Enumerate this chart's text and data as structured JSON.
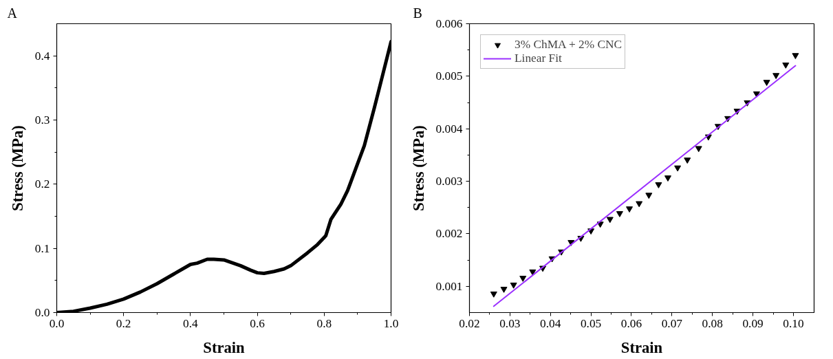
{
  "chart_data": [
    {
      "type": "line",
      "xlabel": "Strain",
      "ylabel": "Stress (MPa)",
      "annotations": [
        "A"
      ],
      "xlim": [
        0,
        1
      ],
      "ylim": [
        0,
        0.45
      ],
      "xticks": [
        {
          "value": 0,
          "label": "0.0"
        },
        0.2,
        0.4,
        0.6,
        0.8,
        {
          "value": 1,
          "label": "1.0"
        }
      ],
      "yticks": [
        {
          "value": 0,
          "label": "0.0"
        },
        0.1,
        0.2,
        0.3,
        0.4
      ],
      "grid": false,
      "legend": false,
      "series": [
        {
          "color": "#000000",
          "x": [
            0,
            0.05,
            0.1,
            0.15,
            0.2,
            0.25,
            0.3,
            0.35,
            0.4,
            0.42,
            0.45,
            0.47,
            0.5,
            0.55,
            0.58,
            0.6,
            0.62,
            0.65,
            0.68,
            0.7,
            0.75,
            0.78,
            0.8,
            0.805,
            0.82,
            0.85,
            0.87,
            0.9,
            0.92,
            0.95,
            0.97,
            1.0
          ],
          "values": [
            0,
            0.002,
            0.007,
            0.013,
            0.021,
            0.032,
            0.045,
            0.06,
            0.075,
            0.077,
            0.083,
            0.083,
            0.082,
            0.073,
            0.066,
            0.062,
            0.061,
            0.064,
            0.068,
            0.073,
            0.093,
            0.106,
            0.117,
            0.12,
            0.145,
            0.169,
            0.19,
            0.232,
            0.26,
            0.319,
            0.36,
            0.422
          ]
        }
      ]
    },
    {
      "type": "scatter",
      "xlabel": "Strain",
      "ylabel": "Stress (MPa)",
      "annotations": [
        "B"
      ],
      "xlim": [
        0.02,
        0.1051
      ],
      "ylim": [
        0.0005,
        0.006
      ],
      "xticks": [
        0.02,
        0.03,
        0.04,
        0.05,
        0.06,
        0.07,
        0.08,
        0.09,
        {
          "value": 0.1,
          "label": "0.10"
        }
      ],
      "yticks": [
        0.001,
        0.002,
        0.003,
        0.004,
        0.005,
        0.006
      ],
      "grid": false,
      "legend": "top left",
      "series": [
        {
          "name": "3% ChMA + 2% CNC",
          "color": "#000000",
          "marker": "triangle",
          "x": [
            0.026,
            0.0285,
            0.0309,
            0.0332,
            0.0356,
            0.0381,
            0.0404,
            0.0427,
            0.0451,
            0.0475,
            0.05,
            0.0523,
            0.0547,
            0.0571,
            0.0595,
            0.0619,
            0.0643,
            0.0667,
            0.069,
            0.0714,
            0.0738,
            0.0766,
            0.079,
            0.0814,
            0.0838,
            0.0861,
            0.0886,
            0.0909,
            0.0934,
            0.0957,
            0.0981,
            0.1005
          ],
          "values": [
            0.00086,
            0.00095,
            0.00103,
            0.00116,
            0.00128,
            0.00135,
            0.00153,
            0.00166,
            0.00184,
            0.00192,
            0.00206,
            0.00219,
            0.00228,
            0.00239,
            0.00248,
            0.00258,
            0.00274,
            0.00294,
            0.00307,
            0.00326,
            0.00341,
            0.00363,
            0.00385,
            0.00405,
            0.0042,
            0.00434,
            0.0045,
            0.00467,
            0.00489,
            0.00502,
            0.00522,
            0.0054
          ]
        },
        {
          "name": "Linear Fit",
          "type": "line",
          "color": "#9b30ff",
          "x": [
            0.026,
            0.1005
          ],
          "values": [
            0.00062,
            0.0052
          ]
        }
      ]
    }
  ]
}
